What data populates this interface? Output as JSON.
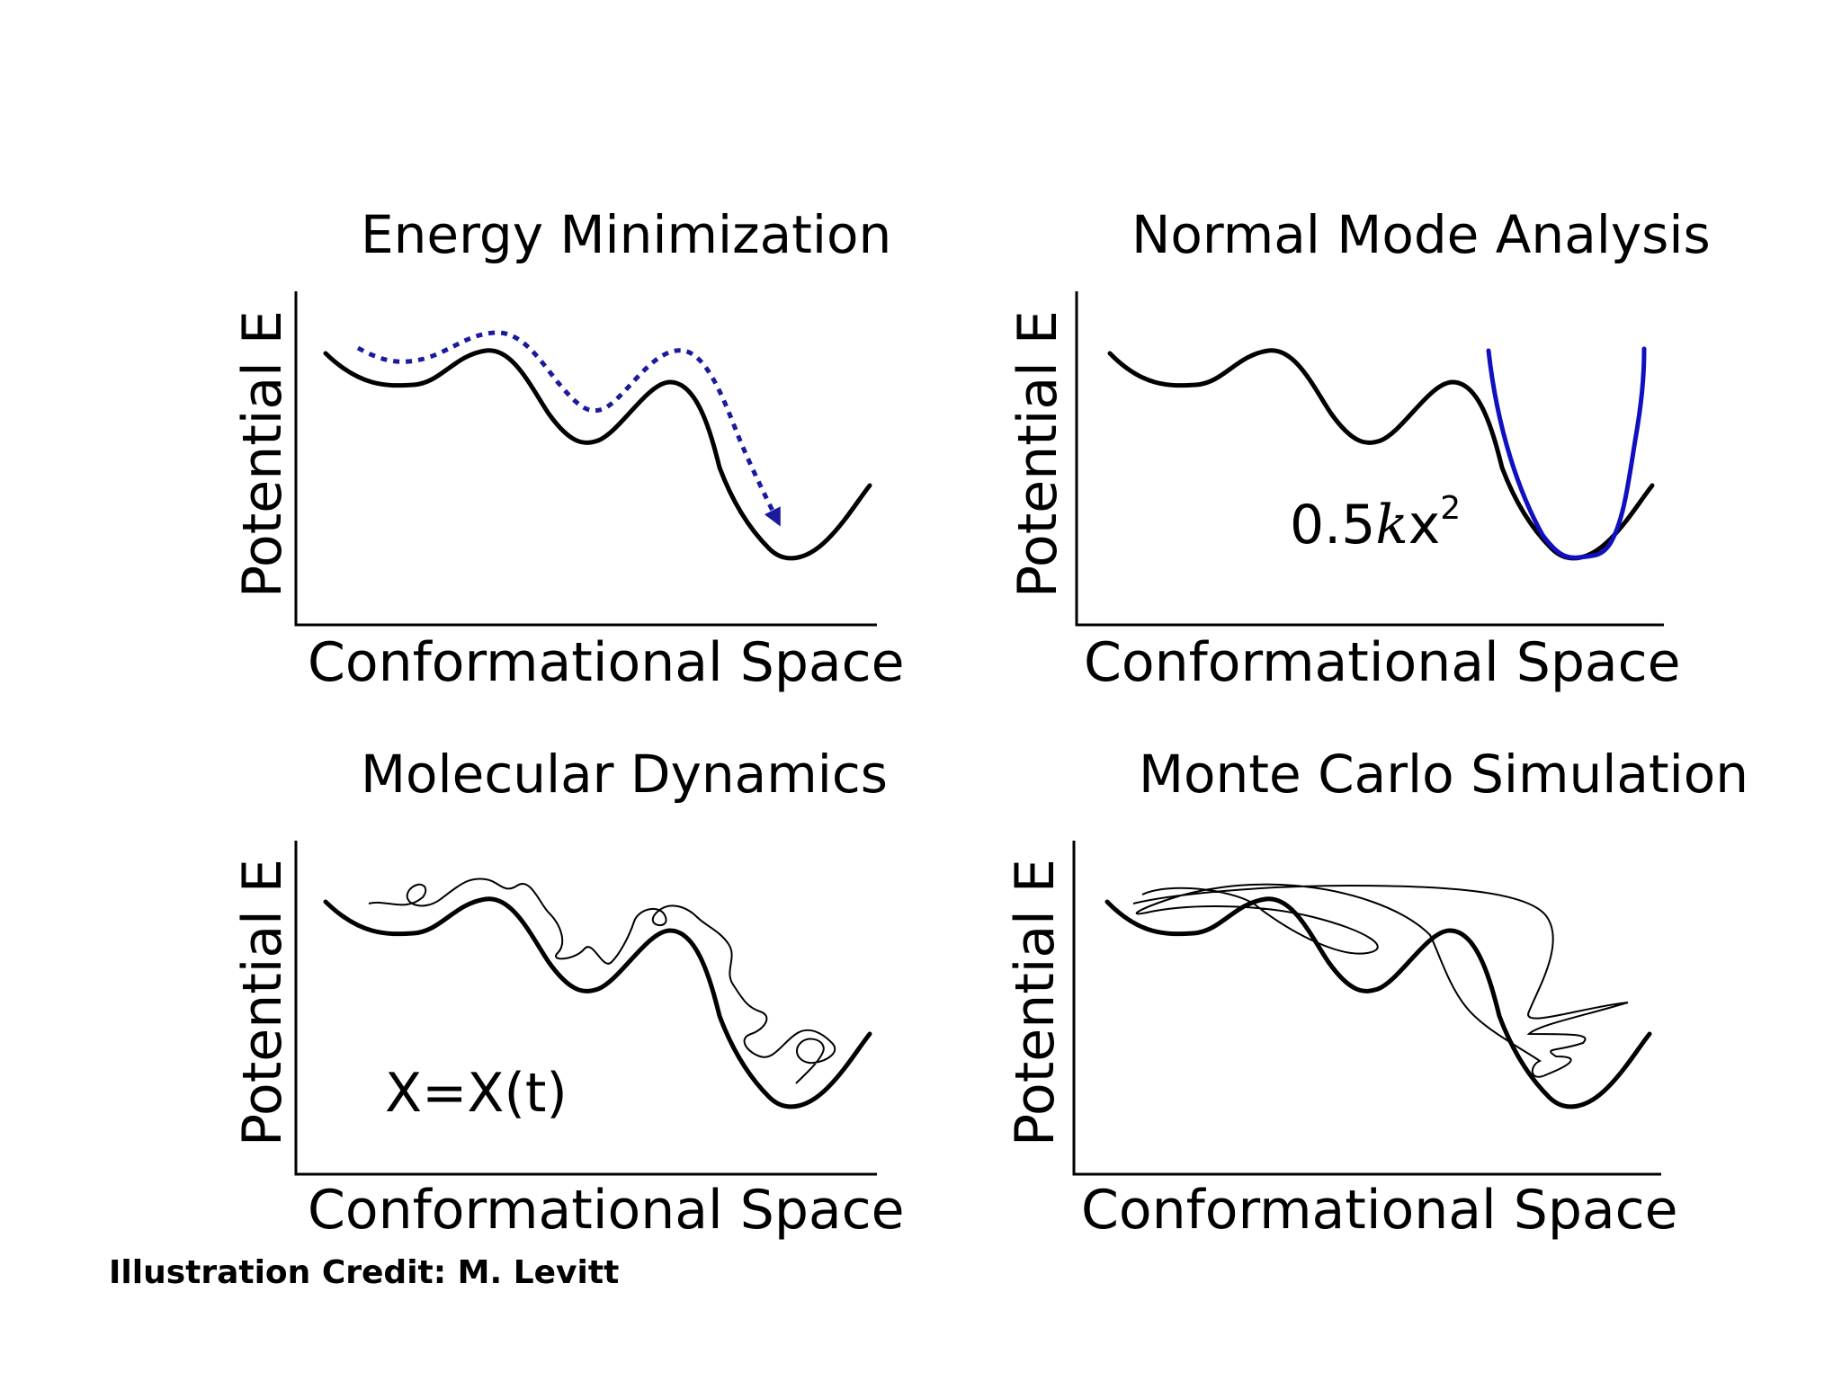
{
  "panels": [
    {
      "title": "Energy Minimization",
      "xlabel": "Conformational Space",
      "ylabel": "Potential E"
    },
    {
      "title": "Normal Mode Analysis",
      "xlabel": "Conformational Space",
      "ylabel": "Potential E"
    },
    {
      "title": "Molecular Dynamics",
      "xlabel": "Conformational Space",
      "ylabel": "Potential E"
    },
    {
      "title": "Monte Carlo Simulation",
      "xlabel": "Conformational Space",
      "ylabel": "Potential E"
    }
  ],
  "normal_mode": {
    "formula_prefix": "0.5",
    "formula_k": "k",
    "formula_x": "x",
    "formula_exp": "2"
  },
  "molecular_dynamics": {
    "formula": "X=X(t)"
  },
  "credit": "Illustration Credit: M. Levitt",
  "colors": {
    "curve": "#000000",
    "path_blue": "#1a1a9c",
    "harmonic_blue": "#1010c0"
  }
}
